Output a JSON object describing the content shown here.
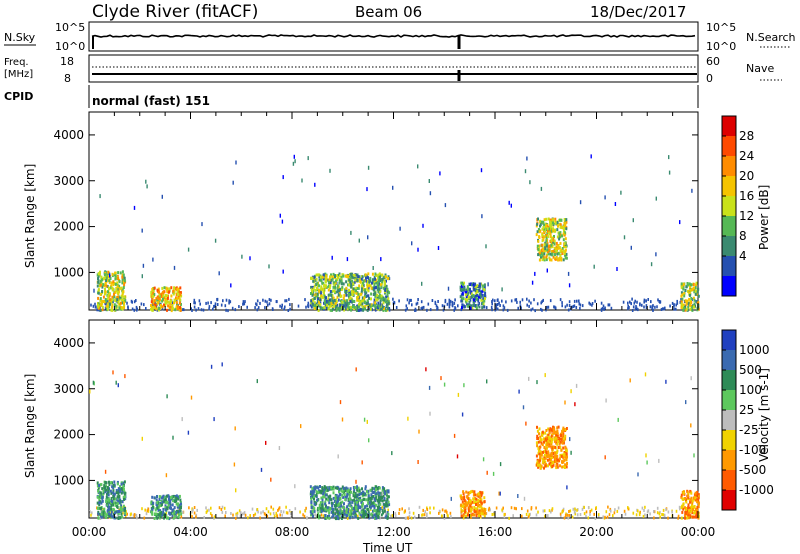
{
  "header": {
    "station": "Clyde River (fitACF)",
    "beam": "Beam 06",
    "date": "18/Dec/2017"
  },
  "status_panels": {
    "nsky_label": "N.Sky",
    "nsky_ticks": [
      "10^5",
      "10^0"
    ],
    "nsearch_label": "N.Search",
    "nsearch_ticks": [
      "10^5",
      "10^0"
    ],
    "freq_label_top": "Freq.",
    "freq_label_bottom": "[MHz]",
    "freq_ticks": [
      "18",
      "8"
    ],
    "nave_label": "Nave",
    "nave_ticks": [
      "60",
      "0"
    ],
    "cpid_label": "CPID",
    "cpid_value": "normal (fast) 151"
  },
  "axes": {
    "ylabel": "Slant Range [km]",
    "yticks": [
      "4000",
      "3000",
      "2000",
      "1000"
    ],
    "xticks": [
      "00:00",
      "04:00",
      "08:00",
      "12:00",
      "16:00",
      "20:00",
      "00:00"
    ],
    "xlabel": "Time UT"
  },
  "power_scale": {
    "label": "Power [dB]",
    "ticks": [
      "28",
      "24",
      "20",
      "16",
      "12",
      "8",
      "4"
    ],
    "colors": [
      "#dd0000",
      "#ff4a00",
      "#ff8c00",
      "#f5c400",
      "#c9e21a",
      "#55b855",
      "#3a8a70",
      "#2550b0",
      "#0000ff"
    ]
  },
  "velocity_scale": {
    "label": "Velocity [m s-1]",
    "ticks": [
      "1000",
      "500",
      "100",
      "25",
      "-25",
      "-100",
      "-500",
      "-1000"
    ],
    "colors": [
      "#2040c0",
      "#3a6ab0",
      "#2e8b57",
      "#5dc85d",
      "#bdbdbd",
      "#f0d200",
      "#ff9900",
      "#ff5a00",
      "#e00000"
    ]
  },
  "colors": {
    "power_main": "#1f4fb0",
    "power_hot": "#ff5500",
    "vel_main": "#2e8b57",
    "vel_neg": "#ff8c00"
  },
  "chart_data": [
    {
      "type": "heatmap",
      "title": "Power [dB]",
      "xlabel": "Time UT",
      "ylabel": "Slant Range [km]",
      "xlim": [
        0,
        24
      ],
      "ylim": [
        180,
        4500
      ],
      "scatter_regions": [
        {
          "t0": 0.3,
          "t1": 1.4,
          "r0": 200,
          "r1": 1050,
          "value": 16
        },
        {
          "t0": 2.4,
          "t1": 3.6,
          "r0": 200,
          "r1": 700,
          "value": 22
        },
        {
          "t0": 8.7,
          "t1": 11.8,
          "r0": 200,
          "r1": 1000,
          "value": 14
        },
        {
          "t0": 14.6,
          "t1": 15.6,
          "r0": 250,
          "r1": 800,
          "value": 10
        },
        {
          "t0": 17.6,
          "t1": 18.8,
          "r0": 1300,
          "r1": 2200,
          "value": 18
        },
        {
          "t0": 23.3,
          "t1": 24.0,
          "r0": 200,
          "r1": 800,
          "value": 16
        }
      ]
    },
    {
      "type": "heatmap",
      "title": "Velocity [m s-1]",
      "xlabel": "Time UT",
      "ylabel": "Slant Range [km]",
      "xlim": [
        0,
        24
      ],
      "ylim": [
        180,
        4500
      ],
      "scatter_regions": [
        {
          "t0": 0.3,
          "t1": 1.4,
          "r0": 200,
          "r1": 1000,
          "value": 100
        },
        {
          "t0": 2.4,
          "t1": 3.6,
          "r0": 200,
          "r1": 700,
          "value": 300
        },
        {
          "t0": 8.7,
          "t1": 11.8,
          "r0": 200,
          "r1": 900,
          "value": 100
        },
        {
          "t0": 14.6,
          "t1": 15.6,
          "r0": 250,
          "r1": 800,
          "value": -300
        },
        {
          "t0": 17.6,
          "t1": 18.8,
          "r0": 1300,
          "r1": 2200,
          "value": -400
        },
        {
          "t0": 23.3,
          "t1": 24.0,
          "r0": 200,
          "r1": 800,
          "value": -100
        }
      ]
    }
  ]
}
